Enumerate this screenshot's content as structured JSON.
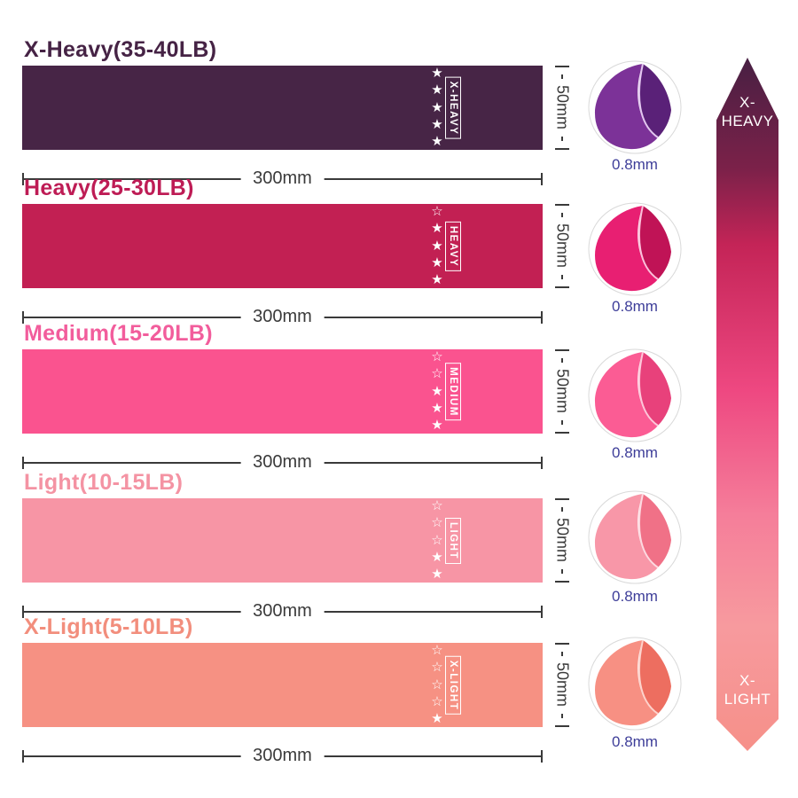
{
  "page": {
    "background": "#ffffff",
    "measure_color": "#3a3a3a",
    "thickness_color": "#3e3e99"
  },
  "icons": {
    "star_filled_glyph": "★",
    "star_outline_glyph": "☆"
  },
  "dimensions": {
    "width": "300mm",
    "height": "50mm",
    "thickness": "0.8mm"
  },
  "bands": [
    {
      "title": "X-Heavy(35-40LB)",
      "label": "X-HEAVY",
      "color": "#472546",
      "title_color": "#462345",
      "stars_total": 5,
      "stars_filled": 5,
      "circle": {
        "main": "#7c3298",
        "fold": "#5a2178",
        "highlight": "#e2c6ef"
      }
    },
    {
      "title": "Heavy(25-30LB)",
      "label": "HEAVY",
      "color": "#c22053",
      "title_color": "#be1c55",
      "stars_total": 5,
      "stars_filled": 4,
      "circle": {
        "main": "#e81f72",
        "fold": "#c01356",
        "highlight": "#fbc0da"
      }
    },
    {
      "title": "Medium(15-20LB)",
      "label": "MEDIUM",
      "color": "#fa538f",
      "title_color": "#f25d9c",
      "stars_total": 5,
      "stars_filled": 3,
      "circle": {
        "main": "#fb5c94",
        "fold": "#e8417b",
        "highlight": "#fdc6d9"
      }
    },
    {
      "title": "Light(10-15LB)",
      "label": "LIGHT",
      "color": "#f795a5",
      "title_color": "#f493a3",
      "stars_total": 5,
      "stars_filled": 2,
      "circle": {
        "main": "#f897a8",
        "fold": "#f07187",
        "highlight": "#fdd9e0"
      }
    },
    {
      "title": "X-Light(5-10LB)",
      "label": "X-LIGHT",
      "color": "#f69183",
      "title_color": "#f28e7d",
      "stars_total": 5,
      "stars_filled": 1,
      "circle": {
        "main": "#f79083",
        "fold": "#ed6e60",
        "highlight": "#fdd2cb"
      }
    }
  ],
  "layout_rows": {
    "tops": [
      42,
      198,
      362,
      530,
      693
    ],
    "circle_tops": [
      68,
      228,
      393,
      553,
      718
    ],
    "thickness_tops": [
      176,
      336,
      501,
      663,
      827
    ]
  },
  "scale_arrow": {
    "top_line1": "X-",
    "top_line2": "HEAVY",
    "bottom_line1": "X-",
    "bottom_line2": "LIGHT",
    "gradient": [
      {
        "color": "#482043",
        "pos": "0%"
      },
      {
        "color": "#7b2149",
        "pos": "16%"
      },
      {
        "color": "#c42457",
        "pos": "27%"
      },
      {
        "color": "#ee4881",
        "pos": "48%"
      },
      {
        "color": "#f57e9a",
        "pos": "66%"
      },
      {
        "color": "#f79a9e",
        "pos": "82%"
      },
      {
        "color": "#f69089",
        "pos": "100%"
      }
    ]
  }
}
